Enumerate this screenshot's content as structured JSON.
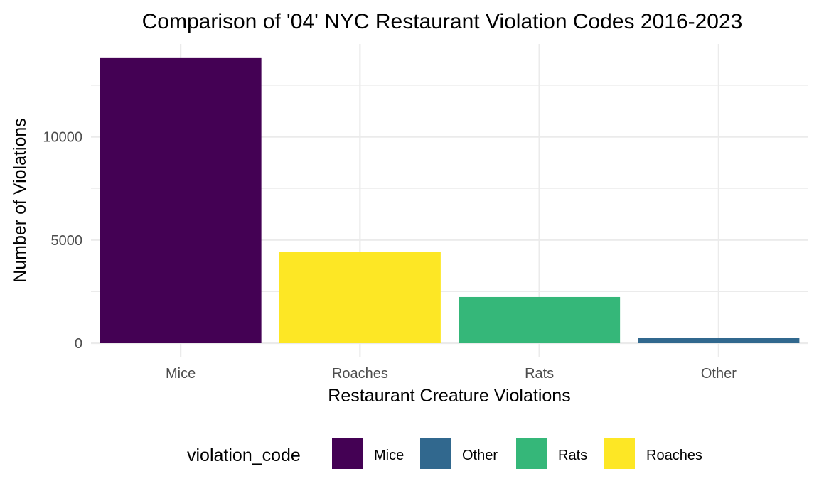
{
  "chart_data": {
    "type": "bar",
    "title": "Comparison of '04' NYC Restaurant Violation Codes 2016-2023",
    "xlabel": "Restaurant Creature Violations",
    "ylabel": "Number of Violations",
    "categories": [
      "Mice",
      "Roaches",
      "Rats",
      "Other"
    ],
    "values": [
      13850,
      4420,
      2240,
      260
    ],
    "bar_colors": [
      "#440154",
      "#FDE725",
      "#35B779",
      "#31688E"
    ],
    "ylim": [
      0,
      14500
    ],
    "yticks": [
      0,
      5000,
      10000
    ],
    "y_minor_ticks": [
      2500,
      7500,
      12500
    ],
    "grid": true,
    "legend": {
      "title": "violation_code",
      "position": "bottom",
      "entries": [
        {
          "label": "Mice",
          "color": "#440154"
        },
        {
          "label": "Other",
          "color": "#31688E"
        },
        {
          "label": "Rats",
          "color": "#35B779"
        },
        {
          "label": "Roaches",
          "color": "#FDE725"
        }
      ]
    }
  }
}
